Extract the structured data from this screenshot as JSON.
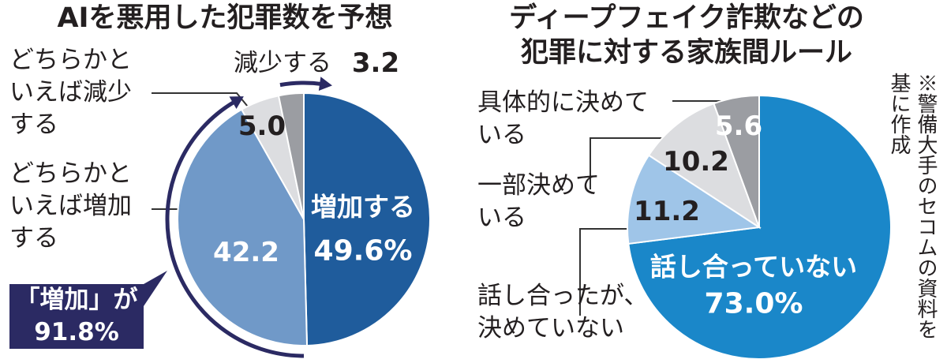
{
  "chart_data": [
    {
      "type": "pie",
      "title": "AIを悪用した犯罪数を予想",
      "categories": [
        "増加する",
        "どちらかといえば増加する",
        "どちらかといえば減少する",
        "減少する"
      ],
      "values": [
        49.6,
        42.2,
        5.0,
        3.2
      ],
      "value_labels": [
        "49.6%",
        "42.2",
        "5.0",
        "3.2"
      ],
      "colors": [
        "#1f5c9c",
        "#7099c8",
        "#dcdde0",
        "#9b9da2"
      ],
      "annotation": "「増加」が\n91.8%"
    },
    {
      "type": "pie",
      "title": "ディープフェイク詐欺などの\n犯罪に対する家族間ルール",
      "categories": [
        "話し合っていない",
        "話し合ったが、決めていない",
        "一部決めている",
        "具体的に決めている"
      ],
      "values": [
        73.0,
        11.2,
        10.2,
        5.6
      ],
      "value_labels": [
        "73.0%",
        "11.2",
        "10.2",
        "5.6"
      ],
      "colors": [
        "#1a87c9",
        "#9fc5e8",
        "#dcdde0",
        "#9b9da2"
      ],
      "note": "※警備大手のセコムの資料を基に作成"
    }
  ]
}
